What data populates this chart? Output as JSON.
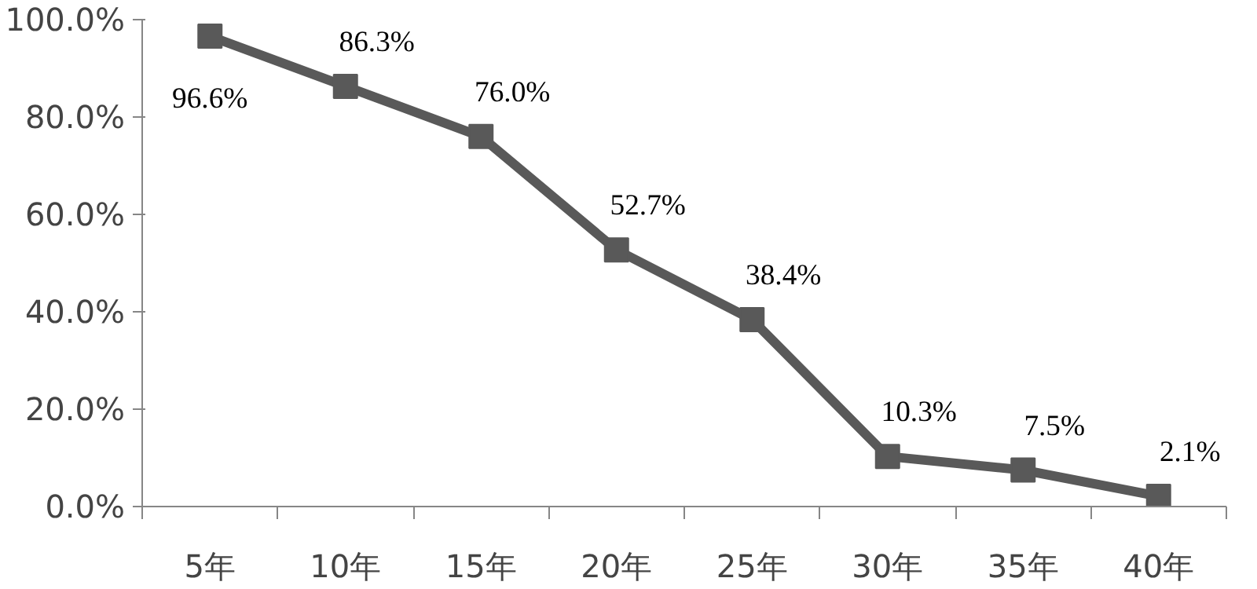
{
  "chart_data": {
    "type": "line",
    "categories": [
      "5年",
      "10年",
      "15年",
      "20年",
      "25年",
      "30年",
      "35年",
      "40年"
    ],
    "series": [
      {
        "color": "#595959",
        "values": [
          96.6,
          86.3,
          76.0,
          52.7,
          38.4,
          10.3,
          7.5,
          2.1
        ],
        "value_labels": [
          "96.6%",
          "86.3%",
          "76.0%",
          "52.7%",
          "38.4%",
          "10.3%",
          "7.5%",
          "2.1%"
        ]
      }
    ],
    "ylim": [
      0,
      100
    ],
    "yticks": [
      {
        "value": 0,
        "label": "0.0%"
      },
      {
        "value": 20,
        "label": "20.0%"
      },
      {
        "value": 40,
        "label": "40.0%"
      },
      {
        "value": 60,
        "label": "60.0%"
      },
      {
        "value": 80,
        "label": "80.0%"
      },
      {
        "value": 100,
        "label": "100.0%"
      }
    ],
    "marker": "square",
    "grid": false
  }
}
